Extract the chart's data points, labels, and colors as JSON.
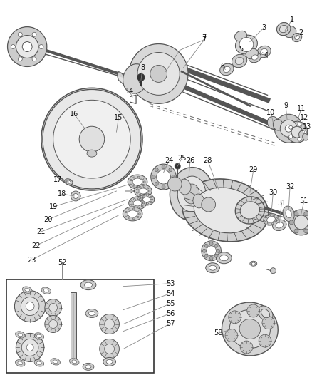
{
  "bg_color": "#ffffff",
  "line_color": "#666666",
  "label_fontsize": 7,
  "leader_color": "#888888"
}
